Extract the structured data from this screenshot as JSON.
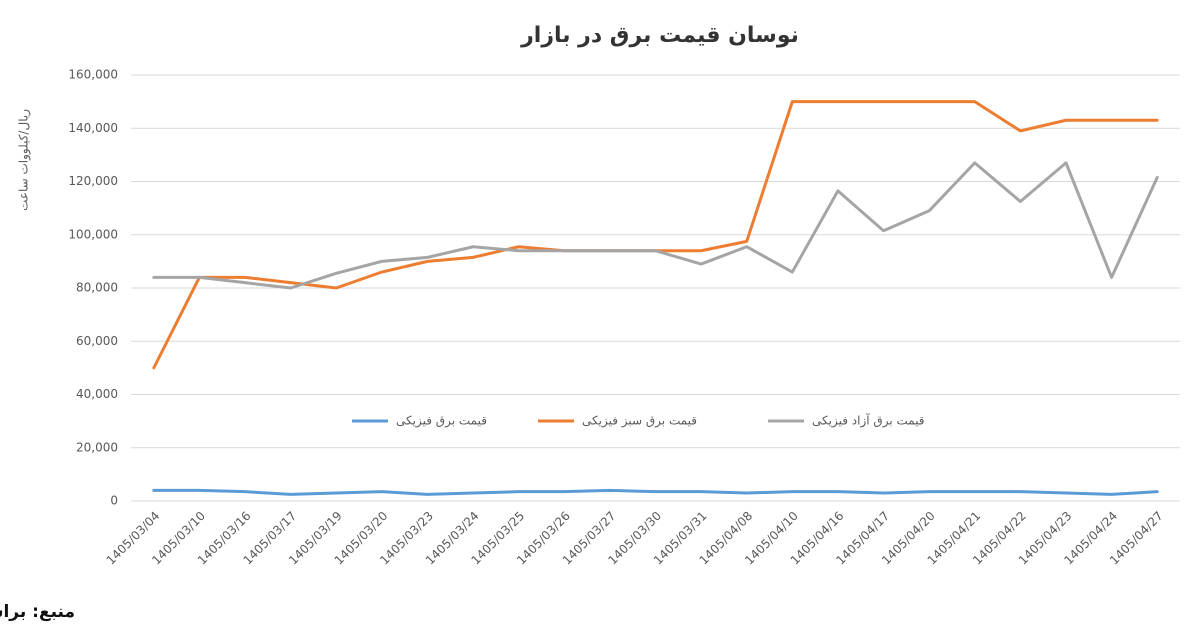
{
  "chart_data": {
    "type": "line",
    "title": "نوسان قیمت برق در بازار",
    "y_label": "ریال/کیلووات ساعت",
    "source": "منبع: براساس داده‌های بورس انرژی ایران",
    "categories": [
      "1405/03/04",
      "1405/03/10",
      "1405/03/16",
      "1405/03/17",
      "1405/03/19",
      "1405/03/20",
      "1405/03/23",
      "1405/03/24",
      "1405/03/25",
      "1405/03/26",
      "1405/03/27",
      "1405/03/30",
      "1405/03/31",
      "1405/04/08",
      "1405/04/10",
      "1405/04/16",
      "1405/04/17",
      "1405/04/20",
      "1405/04/21",
      "1405/04/22",
      "1405/04/23",
      "1405/04/24",
      "1405/04/27"
    ],
    "series": [
      {
        "name": "قیمت برق فیزیکی",
        "color": "#5b9bd5",
        "values": [
          4000,
          4000,
          3500,
          2500,
          3000,
          3500,
          2500,
          3000,
          3500,
          3500,
          4000,
          3500,
          3500,
          3000,
          3500,
          3500,
          3000,
          3500,
          3500,
          3500,
          3000,
          2500,
          3500
        ]
      },
      {
        "name": "قیمت برق سبز فیزیکی",
        "color": "#ed7d31",
        "values": [
          50000,
          84000,
          84000,
          82000,
          80000,
          86000,
          90000,
          91500,
          95500,
          94000,
          94000,
          94000,
          94000,
          97500,
          150000,
          150000,
          150000,
          150000,
          150000,
          139000,
          143000,
          143000,
          143000
        ]
      },
      {
        "name": "قیمت برق آزاد فیزیکی",
        "color": "#a5a5a5",
        "values": [
          84000,
          84000,
          82000,
          80000,
          85500,
          90000,
          91500,
          95500,
          94000,
          94000,
          94000,
          94000,
          89000,
          95500,
          86000,
          116500,
          101500,
          109000,
          127000,
          112500,
          127000,
          84000,
          121500
        ]
      }
    ],
    "ylim": [
      0,
      160000
    ],
    "yticks": [
      0,
      {
        "value": 20000,
        "label": "20,000"
      },
      {
        "value": 40000,
        "label": "40,000"
      },
      {
        "value": 60000,
        "label": "60,000"
      },
      {
        "value": 80000,
        "label": "80,000"
      },
      {
        "value": 100000,
        "label": "100,000"
      },
      {
        "value": 120000,
        "label": "120,000"
      },
      {
        "value": 140000,
        "label": "140,000"
      },
      {
        "value": 160000,
        "label": "160,000"
      }
    ],
    "grid": true
  }
}
